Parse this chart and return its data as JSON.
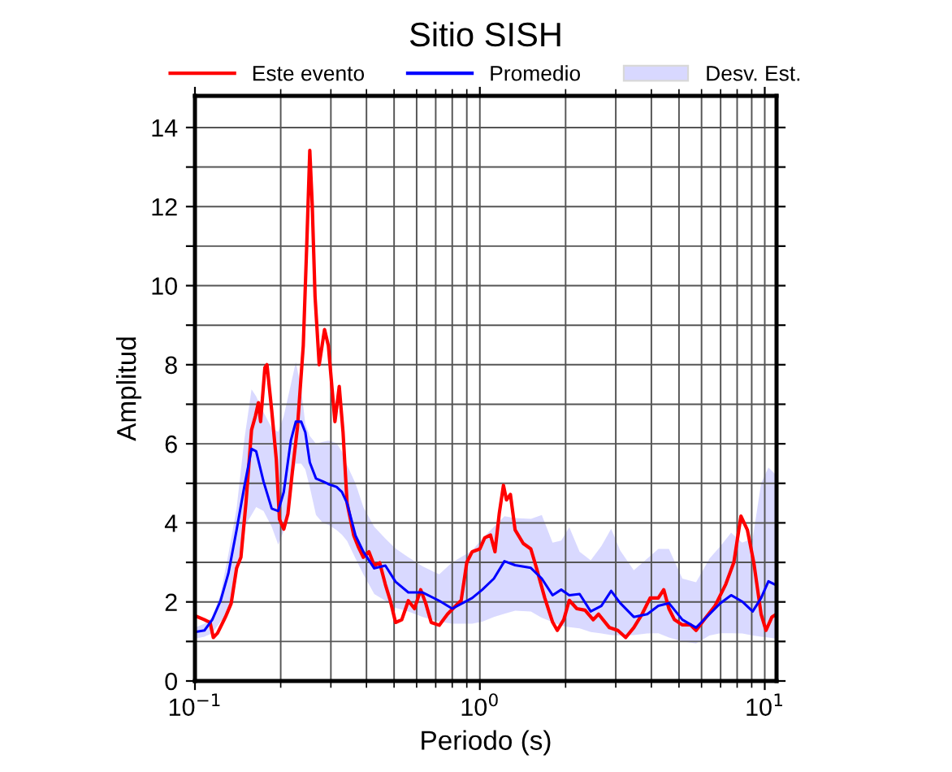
{
  "chart_data": {
    "type": "line",
    "title": "Sitio SISH",
    "xlabel": "Periodo (s)",
    "ylabel": "Amplitud",
    "log": "x",
    "grid": true,
    "legend": "top",
    "line_style": "solid",
    "marker": "none",
    "annotations": [
      "Desv. Est."
    ],
    "xlim": [
      0.1,
      11
    ],
    "xticks": [
      {
        "value": 0.1,
        "label": "10$^{−1}$"
      },
      {
        "value": 1,
        "label": "10$^{0}$"
      },
      {
        "value": 10,
        "label": "10$^{1}$"
      }
    ],
    "ylim": [
      0,
      14.8
    ],
    "yticks": [
      0,
      {
        "value": 1,
        "label": null
      },
      2,
      {
        "value": 3,
        "label": null
      },
      4,
      {
        "value": 5,
        "label": null
      },
      6,
      {
        "value": 7,
        "label": null
      },
      8,
      {
        "value": 9,
        "label": null
      },
      10,
      {
        "value": 11,
        "label": null
      },
      12,
      {
        "value": 13,
        "label": null
      },
      14
    ],
    "series": [
      {
        "name": "Este evento",
        "color": "#ff0000",
        "x": [
          0.1,
          0.108,
          0.113,
          0.116,
          0.12,
          0.128,
          0.134,
          0.14,
          0.145,
          0.151,
          0.158,
          0.163,
          0.167,
          0.17,
          0.176,
          0.179,
          0.186,
          0.193,
          0.198,
          0.205,
          0.212,
          0.22,
          0.229,
          0.24,
          0.247,
          0.253,
          0.258,
          0.264,
          0.273,
          0.285,
          0.294,
          0.303,
          0.31,
          0.321,
          0.331,
          0.342,
          0.361,
          0.374,
          0.39,
          0.408,
          0.426,
          0.445,
          0.466,
          0.485,
          0.506,
          0.532,
          0.561,
          0.59,
          0.62,
          0.646,
          0.675,
          0.72,
          0.77,
          0.82,
          0.86,
          0.9,
          0.94,
          1.0,
          1.04,
          1.09,
          1.13,
          1.17,
          1.21,
          1.24,
          1.28,
          1.33,
          1.42,
          1.51,
          1.58,
          1.69,
          1.8,
          1.87,
          1.97,
          2.06,
          2.19,
          2.34,
          2.5,
          2.61,
          2.85,
          3.05,
          3.25,
          3.47,
          3.71,
          3.96,
          4.23,
          4.42,
          4.61,
          4.82,
          5.14,
          5.49,
          5.74,
          6.13,
          6.69,
          7.3,
          7.79,
          8.25,
          8.69,
          9.15,
          9.71,
          10.1,
          10.6,
          11.0
        ],
        "values": [
          1.65,
          1.55,
          1.48,
          1.1,
          1.21,
          1.62,
          1.96,
          2.85,
          3.13,
          4.5,
          6.35,
          6.7,
          7.04,
          6.56,
          7.93,
          8.0,
          6.84,
          5.6,
          4.09,
          3.84,
          4.23,
          5.33,
          6.42,
          8.48,
          11.09,
          13.42,
          12.05,
          9.72,
          8.0,
          8.89,
          8.48,
          7.38,
          6.56,
          7.45,
          6.29,
          4.5,
          3.68,
          3.4,
          3.13,
          3.27,
          2.92,
          2.99,
          2.44,
          2.03,
          1.48,
          1.55,
          2.03,
          1.83,
          2.31,
          1.96,
          1.48,
          1.41,
          1.69,
          1.89,
          2.04,
          3.0,
          3.27,
          3.34,
          3.62,
          3.69,
          3.27,
          4.24,
          4.95,
          4.58,
          4.72,
          3.82,
          3.48,
          3.34,
          2.86,
          2.1,
          1.49,
          1.28,
          1.55,
          2.04,
          1.83,
          1.79,
          1.55,
          1.69,
          1.35,
          1.28,
          1.1,
          1.35,
          1.69,
          2.1,
          2.1,
          2.31,
          1.83,
          1.55,
          1.42,
          1.42,
          1.28,
          1.55,
          1.9,
          2.45,
          3.0,
          4.17,
          3.82,
          3.0,
          1.69,
          1.28,
          1.62,
          1.69
        ]
      },
      {
        "name": "Promedio",
        "color": "#0000ff",
        "x": [
          0.1,
          0.108,
          0.115,
          0.123,
          0.131,
          0.14,
          0.149,
          0.158,
          0.164,
          0.174,
          0.186,
          0.196,
          0.205,
          0.217,
          0.226,
          0.236,
          0.244,
          0.253,
          0.266,
          0.281,
          0.294,
          0.314,
          0.328,
          0.342,
          0.366,
          0.39,
          0.426,
          0.466,
          0.506,
          0.561,
          0.63,
          0.72,
          0.8,
          0.94,
          1.02,
          1.12,
          1.22,
          1.33,
          1.51,
          1.65,
          1.8,
          1.93,
          2.06,
          2.24,
          2.45,
          2.67,
          2.89,
          3.11,
          3.47,
          3.87,
          4.23,
          4.61,
          5.14,
          5.74,
          6.4,
          6.99,
          7.62,
          8.33,
          9.07,
          9.71,
          10.3,
          11.0
        ],
        "values": [
          1.24,
          1.28,
          1.55,
          2.03,
          2.72,
          3.82,
          4.91,
          5.87,
          5.81,
          5.05,
          4.36,
          4.3,
          4.78,
          6.08,
          6.56,
          6.56,
          6.29,
          5.53,
          5.12,
          5.05,
          4.98,
          4.91,
          4.78,
          4.5,
          3.68,
          3.27,
          2.85,
          2.92,
          2.51,
          2.24,
          2.24,
          2.03,
          1.83,
          2.1,
          2.31,
          2.59,
          3.03,
          2.93,
          2.86,
          2.59,
          2.17,
          2.31,
          2.17,
          2.2,
          1.76,
          1.9,
          2.28,
          1.97,
          1.62,
          1.69,
          1.9,
          1.97,
          1.55,
          1.35,
          1.69,
          1.97,
          2.17,
          2.01,
          1.76,
          2.1,
          2.52,
          2.42
        ],
        "upper": [
          1.35,
          1.45,
          1.62,
          2.2,
          3.2,
          4.36,
          6.1,
          7.38,
          7.2,
          6.8,
          6.4,
          6.3,
          6.7,
          7.5,
          8.07,
          7.4,
          6.5,
          6.2,
          6.0,
          6.05,
          6.08,
          6.02,
          5.8,
          5.46,
          5.0,
          4.4,
          3.9,
          3.6,
          3.35,
          3.13,
          2.9,
          2.7,
          3.0,
          3.3,
          3.6,
          3.9,
          4.17,
          4.12,
          4.1,
          4.2,
          3.5,
          3.55,
          3.89,
          3.27,
          3.05,
          3.41,
          3.85,
          3.3,
          2.8,
          3.1,
          3.34,
          3.34,
          2.59,
          2.5,
          3.1,
          3.41,
          3.75,
          3.5,
          3.6,
          5.0,
          5.4,
          5.2
        ],
        "lower": [
          1.07,
          1.12,
          1.21,
          1.5,
          1.69,
          2.8,
          3.9,
          4.2,
          4.4,
          4.3,
          3.9,
          3.45,
          3.8,
          4.9,
          5.5,
          5.5,
          5.35,
          4.9,
          4.2,
          4.0,
          3.95,
          3.82,
          3.7,
          3.54,
          3.1,
          2.7,
          2.2,
          2.03,
          1.85,
          1.76,
          1.62,
          1.5,
          1.45,
          1.45,
          1.5,
          1.62,
          1.7,
          1.78,
          1.76,
          1.6,
          1.49,
          1.4,
          1.36,
          1.33,
          1.24,
          1.2,
          1.16,
          1.15,
          1.16,
          1.2,
          1.21,
          1.1,
          1.0,
          0.95,
          1.15,
          1.21,
          1.21,
          1.2,
          1.15,
          1.12,
          1.1,
          1.07
        ]
      }
    ]
  }
}
